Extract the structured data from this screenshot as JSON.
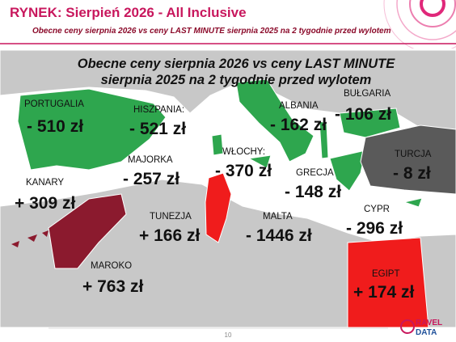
{
  "header": {
    "title": "RYNEK: Sierpień 2026 - All Inclusive",
    "subtitle": "Obecne ceny sierpnia 2026 vs ceny LAST MINUTE sierpnia 2025 na 2 tygodnie przed wylotem"
  },
  "map": {
    "title_lines": [
      "Obecne ceny sierpnia 2026 vs ceny LAST MINUTE",
      "sierpnia 2025 na 2 tygodnie przed wylotem"
    ],
    "regions": [
      {
        "name": "PORTUGALIA",
        "change": "- 510 zł"
      },
      {
        "name": "HISZPANIA:",
        "change": "- 521 zł"
      },
      {
        "name": "ALBANIA",
        "change": "- 162 zł"
      },
      {
        "name": "BUŁGARIA",
        "change": "- 106 zł"
      },
      {
        "name": "MAJORKA",
        "change": "- 257 zł"
      },
      {
        "name": "WŁOCHY:",
        "change": "- 370 zł"
      },
      {
        "name": "GRECJA",
        "change": "- 148 zł"
      },
      {
        "name": "TURCJA",
        "change": "- 8 zł"
      },
      {
        "name": "KANARY",
        "change": "+ 309 zł"
      },
      {
        "name": "TUNEZJA",
        "change": "+ 166 zł"
      },
      {
        "name": "MALTA",
        "change": "- 1446 zł"
      },
      {
        "name": "CYPR",
        "change": "- 296 zł"
      },
      {
        "name": "MAROKO",
        "change": "+ 763 zł"
      },
      {
        "name": "EGIPT",
        "change": "+ 174 zł"
      }
    ]
  },
  "footer": {
    "page": "10",
    "logo": [
      "RAVEL",
      "DATA"
    ]
  }
}
